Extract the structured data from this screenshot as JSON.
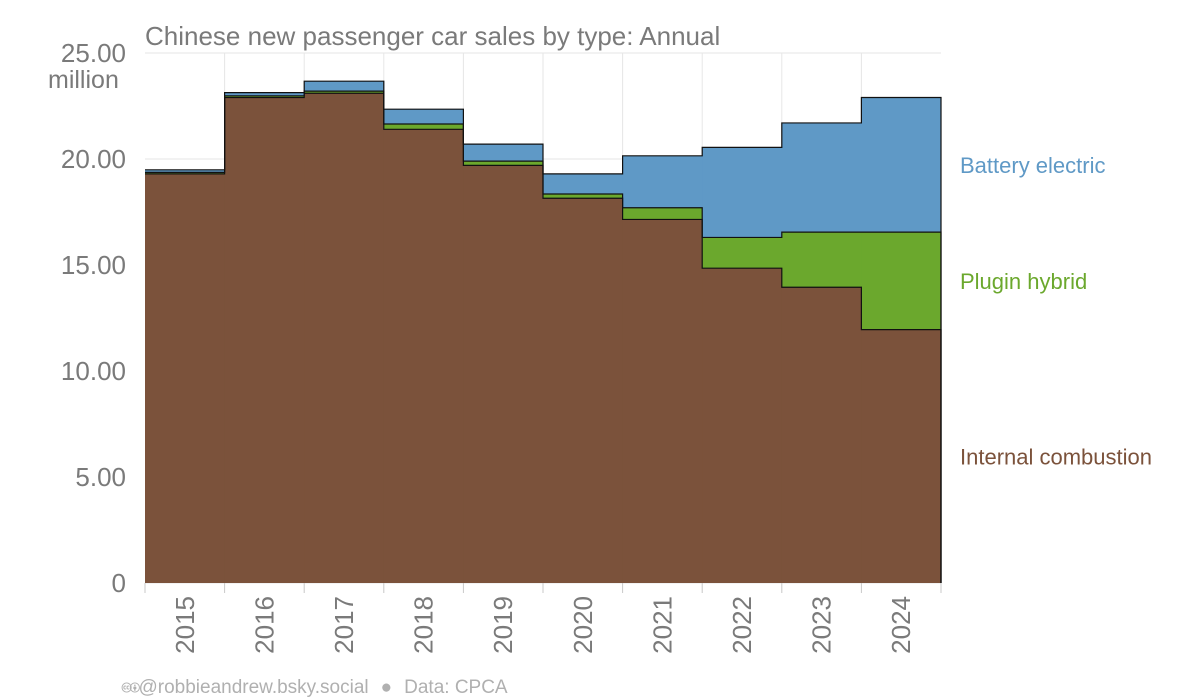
{
  "title": "Chinese new passenger car sales by type: Annual",
  "unit": "million",
  "credit": {
    "icons": "cc-by-icons",
    "handle": "@robbieandrew.bsky.social",
    "separator": "●",
    "source": "Data: CPCA"
  },
  "colors": {
    "internal_combustion": "#7b523b",
    "plugin_hybrid": "#6ba82d",
    "battery_electric": "#5f99c6"
  },
  "chart_data": {
    "type": "area",
    "stacked": true,
    "step": true,
    "title": "Chinese new passenger car sales by type: Annual",
    "ylabel": "million",
    "ylim": [
      0,
      25
    ],
    "yticks": [
      "0",
      "5.00",
      "10.00",
      "15.00",
      "20.00",
      "25.00"
    ],
    "ytick_values": [
      0,
      5,
      10,
      15,
      20,
      25
    ],
    "grid": true,
    "legend_placement": "right, inline labels",
    "categories": [
      "2015",
      "2016",
      "2017",
      "2018",
      "2019",
      "2020",
      "2021",
      "2022",
      "2023",
      "2024"
    ],
    "series": [
      {
        "name": "Internal combustion",
        "color": "#7b523b",
        "values": [
          19.3,
          22.9,
          23.1,
          21.4,
          19.7,
          18.15,
          17.15,
          14.85,
          13.95,
          11.95
        ]
      },
      {
        "name": "Plugin hybrid",
        "color": "#6ba82d",
        "values": [
          0.07,
          0.08,
          0.1,
          0.25,
          0.2,
          0.2,
          0.55,
          1.45,
          2.6,
          4.6
        ]
      },
      {
        "name": "Battery electric",
        "color": "#5f99c6",
        "values": [
          0.12,
          0.15,
          0.47,
          0.7,
          0.8,
          0.95,
          2.45,
          4.25,
          5.15,
          6.35
        ]
      }
    ]
  }
}
